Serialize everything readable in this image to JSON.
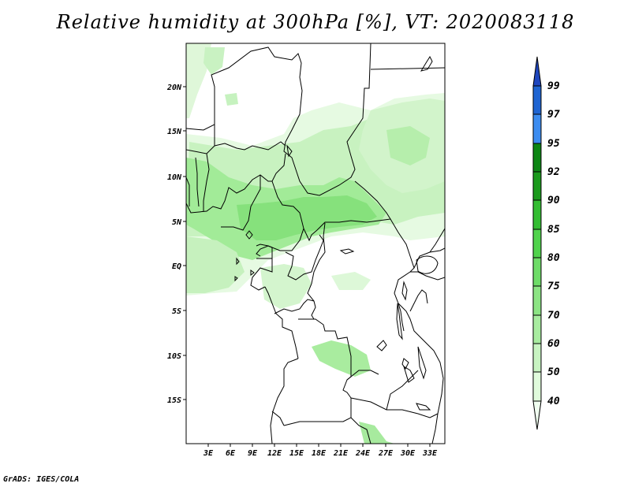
{
  "title": "Relative humidity at 300hPa [%], VT: 2020083118",
  "credit": "GrADS: IGES/COLA",
  "map": {
    "lat_labels": [
      "20N",
      "15N",
      "10N",
      "5N",
      "EQ",
      "5S",
      "10S",
      "15S"
    ],
    "lon_labels": [
      "3E",
      "6E",
      "9E",
      "12E",
      "15E",
      "18E",
      "21E",
      "24E",
      "27E",
      "30E",
      "33E"
    ]
  },
  "colorbar": {
    "levels": [
      "40",
      "50",
      "60",
      "70",
      "75",
      "80",
      "85",
      "90",
      "92",
      "95",
      "97",
      "99"
    ],
    "colors": [
      "#f0fff0",
      "#e0fbdc",
      "#c8f4c2",
      "#a8eca0",
      "#8ce484",
      "#6edc68",
      "#50d34c",
      "#33bd32",
      "#1a9a1c",
      "#0c8614",
      "#3c8cf0",
      "#1e64d2",
      "#1e46be"
    ]
  }
}
